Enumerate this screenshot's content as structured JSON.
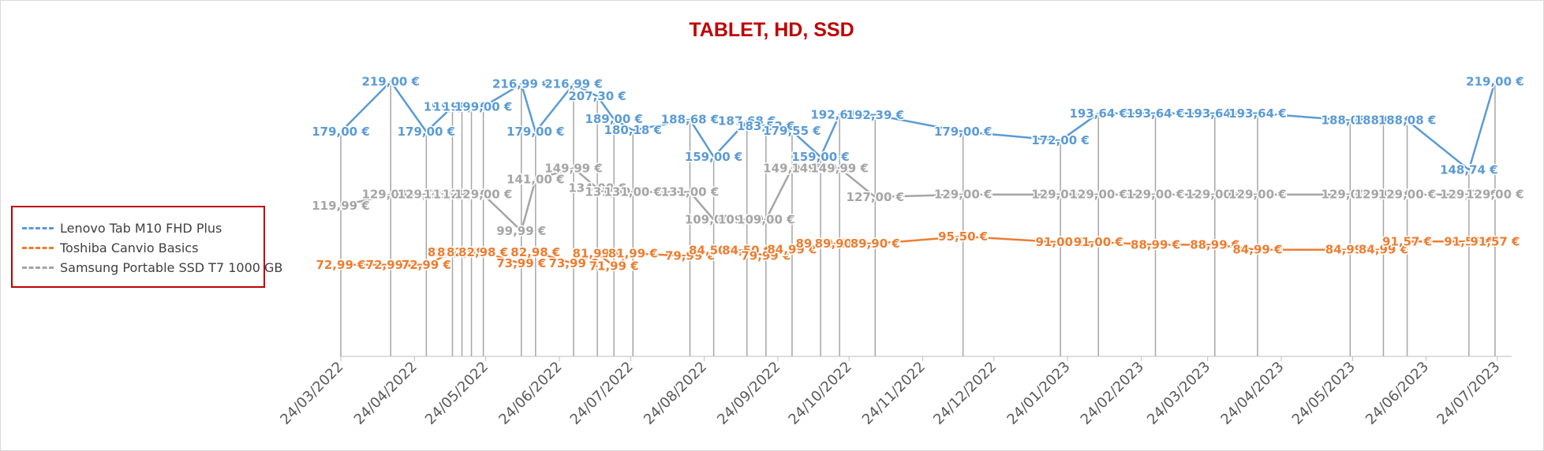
{
  "chart_data": {
    "type": "line",
    "title": "TABLET, HD, SSD",
    "title_color": "#c00000",
    "xlabel": "",
    "ylabel": "",
    "x_axis": "date",
    "xlim": [
      "2022-03-24",
      "2023-07-28"
    ],
    "ylim": [
      0,
      240
    ],
    "x_ticks": [
      "24/03/2022",
      "24/04/2022",
      "24/05/2022",
      "24/06/2022",
      "24/07/2022",
      "24/08/2022",
      "24/09/2022",
      "24/10/2022",
      "24/11/2022",
      "24/12/2022",
      "24/01/2023",
      "24/02/2023",
      "24/03/2023",
      "24/04/2023",
      "24/05/2023",
      "24/06/2023",
      "24/07/2023"
    ],
    "x_tick_dates": [
      "2022-03-24",
      "2022-04-24",
      "2022-05-24",
      "2022-06-24",
      "2022-07-24",
      "2022-08-24",
      "2022-09-24",
      "2022-10-24",
      "2022-11-24",
      "2022-12-24",
      "2023-01-24",
      "2023-02-24",
      "2023-03-24",
      "2023-04-24",
      "2023-05-24",
      "2023-06-24",
      "2023-07-24"
    ],
    "grid": false,
    "drop_lines": true,
    "legend_position": "left",
    "series": [
      {
        "name": "Lenovo Tab M10 FHD Plus",
        "color": "#5b9bd5",
        "points": [
          {
            "x": "2022-03-24",
            "y": 179.0,
            "label": "179,00 €"
          },
          {
            "x": "2022-04-14",
            "y": 219.0,
            "label": "219,00 €"
          },
          {
            "x": "2022-04-29",
            "y": 179.0,
            "label": "179,00 €"
          },
          {
            "x": "2022-05-10",
            "y": 199.0,
            "label": "199,00 €"
          },
          {
            "x": "2022-05-14",
            "y": 199.0,
            "label": "199,00 €"
          },
          {
            "x": "2022-05-18",
            "y": 199.0,
            "label": "199,00 €"
          },
          {
            "x": "2022-05-23",
            "y": 199.0,
            "label": "199,00 €"
          },
          {
            "x": "2022-06-08",
            "y": 216.99,
            "label": "216,99 €"
          },
          {
            "x": "2022-06-14",
            "y": 179.0,
            "label": "179,00 €"
          },
          {
            "x": "2022-06-30",
            "y": 216.99,
            "label": "216,99 €"
          },
          {
            "x": "2022-07-10",
            "y": 207.3,
            "label": "207,30 €"
          },
          {
            "x": "2022-07-17",
            "y": 189.0,
            "label": "189,00 €"
          },
          {
            "x": "2022-07-25",
            "y": 180.18,
            "label": "180,18 €"
          },
          {
            "x": "2022-08-18",
            "y": 188.68,
            "label": "188,68 €"
          },
          {
            "x": "2022-08-28",
            "y": 159.0,
            "label": "159,00 €"
          },
          {
            "x": "2022-09-11",
            "y": 187.68,
            "label": "187,68 €"
          },
          {
            "x": "2022-09-19",
            "y": 183.52,
            "label": "183,52 €"
          },
          {
            "x": "2022-09-30",
            "y": 179.55,
            "label": "179,55 €"
          },
          {
            "x": "2022-10-12",
            "y": 159.0,
            "label": "159,00 €"
          },
          {
            "x": "2022-10-20",
            "y": 192.61,
            "label": "192,61 €"
          },
          {
            "x": "2022-11-04",
            "y": 192.39,
            "label": "192,39 €"
          },
          {
            "x": "2022-12-11",
            "y": 179.0,
            "label": "179,00 €"
          },
          {
            "x": "2023-01-21",
            "y": 172.0,
            "label": "172,00 €"
          },
          {
            "x": "2023-02-06",
            "y": 193.64,
            "label": "193,64 €"
          },
          {
            "x": "2023-03-02",
            "y": 193.64,
            "label": "193,64 €"
          },
          {
            "x": "2023-03-27",
            "y": 193.64,
            "label": "193,64 €"
          },
          {
            "x": "2023-04-14",
            "y": 193.64,
            "label": "193,64 €"
          },
          {
            "x": "2023-05-23",
            "y": 188.08,
            "label": "188,08 €"
          },
          {
            "x": "2023-06-06",
            "y": 188.08,
            "label": "188,08 €"
          },
          {
            "x": "2023-06-16",
            "y": 188.08,
            "label": "188,08 €"
          },
          {
            "x": "2023-07-12",
            "y": 148.74,
            "label": "148,74 €"
          },
          {
            "x": "2023-07-23",
            "y": 219.0,
            "label": "219,00 €"
          }
        ]
      },
      {
        "name": "Toshiba Canvio Basics",
        "color": "#ed7d31",
        "points": [
          {
            "x": "2022-03-24",
            "y": 72.99,
            "label": "72,99 €"
          },
          {
            "x": "2022-04-14",
            "y": 72.99,
            "label": "72,99 €"
          },
          {
            "x": "2022-04-29",
            "y": 72.99,
            "label": "72,99 €"
          },
          {
            "x": "2022-05-10",
            "y": 82.98,
            "label": "82,98 €"
          },
          {
            "x": "2022-05-14",
            "y": 82.98,
            "label": "82,98 €"
          },
          {
            "x": "2022-05-18",
            "y": 82.98,
            "label": "82,98 €"
          },
          {
            "x": "2022-05-23",
            "y": 82.98,
            "label": "82,98 €"
          },
          {
            "x": "2022-06-08",
            "y": 73.99,
            "label": "73,99 €"
          },
          {
            "x": "2022-06-14",
            "y": 82.98,
            "label": "82,98 €"
          },
          {
            "x": "2022-06-30",
            "y": 73.99,
            "label": "73,99 €"
          },
          {
            "x": "2022-07-10",
            "y": 81.99,
            "label": "81,99 €"
          },
          {
            "x": "2022-07-17",
            "y": 71.99,
            "label": "71,99 €"
          },
          {
            "x": "2022-07-25",
            "y": 81.99,
            "label": "81,99 €"
          },
          {
            "x": "2022-08-18",
            "y": 79.99,
            "label": "79,99 €"
          },
          {
            "x": "2022-08-28",
            "y": 84.5,
            "label": "84,50 €"
          },
          {
            "x": "2022-09-11",
            "y": 84.5,
            "label": "84,50 €"
          },
          {
            "x": "2022-09-19",
            "y": 79.99,
            "label": "79,99 €"
          },
          {
            "x": "2022-09-30",
            "y": 84.99,
            "label": "84,99 €"
          },
          {
            "x": "2022-10-12",
            "y": 89.9,
            "label": "89,90 €"
          },
          {
            "x": "2022-10-20",
            "y": 89.9,
            "label": "89,90 €"
          },
          {
            "x": "2022-11-04",
            "y": 89.9,
            "label": "89,90 €"
          },
          {
            "x": "2022-12-11",
            "y": 95.5,
            "label": "95,50 €"
          },
          {
            "x": "2023-01-21",
            "y": 91.0,
            "label": "91,00 €"
          },
          {
            "x": "2023-02-06",
            "y": 91.0,
            "label": "91,00 €"
          },
          {
            "x": "2023-03-02",
            "y": 88.99,
            "label": "88,99 €"
          },
          {
            "x": "2023-03-27",
            "y": 88.99,
            "label": "88,99 €"
          },
          {
            "x": "2023-04-14",
            "y": 84.99,
            "label": "84,99 €"
          },
          {
            "x": "2023-05-23",
            "y": 84.99,
            "label": "84,99 €"
          },
          {
            "x": "2023-06-06",
            "y": 84.99,
            "label": "84,99 €"
          },
          {
            "x": "2023-06-16",
            "y": 91.57,
            "label": "91,57 €"
          },
          {
            "x": "2023-07-12",
            "y": 91.57,
            "label": "91,57 €"
          },
          {
            "x": "2023-07-23",
            "y": 91.57,
            "label": "91,57 €"
          }
        ]
      },
      {
        "name": "Samsung Portable SSD T7 1000 GB",
        "color": "#a5a5a5",
        "points": [
          {
            "x": "2022-03-24",
            "y": 119.99,
            "label": "119,99 €"
          },
          {
            "x": "2022-04-14",
            "y": 129.0,
            "label": "129,00 €"
          },
          {
            "x": "2022-04-29",
            "y": 129.0,
            "label": "129,00 €"
          },
          {
            "x": "2022-05-10",
            "y": 129.0,
            "label": "129,00 €"
          },
          {
            "x": "2022-05-14",
            "y": 129.0,
            "label": "129,00 €"
          },
          {
            "x": "2022-05-18",
            "y": 129.0,
            "label": "129,00 €"
          },
          {
            "x": "2022-05-23",
            "y": 129.0,
            "label": "129,00 €"
          },
          {
            "x": "2022-06-08",
            "y": 99.99,
            "label": "99,99 €"
          },
          {
            "x": "2022-06-14",
            "y": 141.0,
            "label": "141,00 €"
          },
          {
            "x": "2022-06-30",
            "y": 149.99,
            "label": "149,99 €"
          },
          {
            "x": "2022-07-10",
            "y": 134.0,
            "label": "134,00 €"
          },
          {
            "x": "2022-07-17",
            "y": 131.0,
            "label": "131,00 €"
          },
          {
            "x": "2022-07-25",
            "y": 131.0,
            "label": "131,00 €"
          },
          {
            "x": "2022-08-18",
            "y": 131.0,
            "label": "131,00 €"
          },
          {
            "x": "2022-08-28",
            "y": 109.0,
            "label": "109,00 €"
          },
          {
            "x": "2022-09-11",
            "y": 109.0,
            "label": "109,00 €"
          },
          {
            "x": "2022-09-19",
            "y": 109.0,
            "label": "109,00 €"
          },
          {
            "x": "2022-09-30",
            "y": 149.99,
            "label": "149,99 €"
          },
          {
            "x": "2022-10-12",
            "y": 149.99,
            "label": "149,99 €"
          },
          {
            "x": "2022-10-20",
            "y": 149.99,
            "label": "149,99 €"
          },
          {
            "x": "2022-11-04",
            "y": 127.0,
            "label": "127,00 €"
          },
          {
            "x": "2022-12-11",
            "y": 129.0,
            "label": "129,00 €"
          },
          {
            "x": "2023-01-21",
            "y": 129.0,
            "label": "129,00 €"
          },
          {
            "x": "2023-02-06",
            "y": 129.0,
            "label": "129,00 €"
          },
          {
            "x": "2023-03-02",
            "y": 129.0,
            "label": "129,00 €"
          },
          {
            "x": "2023-03-27",
            "y": 129.0,
            "label": "129,00 €"
          },
          {
            "x": "2023-04-14",
            "y": 129.0,
            "label": "129,00 €"
          },
          {
            "x": "2023-05-23",
            "y": 129.0,
            "label": "129,00 €"
          },
          {
            "x": "2023-06-06",
            "y": 129.0,
            "label": "129,00 €"
          },
          {
            "x": "2023-06-16",
            "y": 129.0,
            "label": "129,00 €"
          },
          {
            "x": "2023-07-12",
            "y": 129.0,
            "label": "129,00 €"
          },
          {
            "x": "2023-07-23",
            "y": 129.0,
            "label": "129,00 €"
          }
        ]
      }
    ]
  }
}
